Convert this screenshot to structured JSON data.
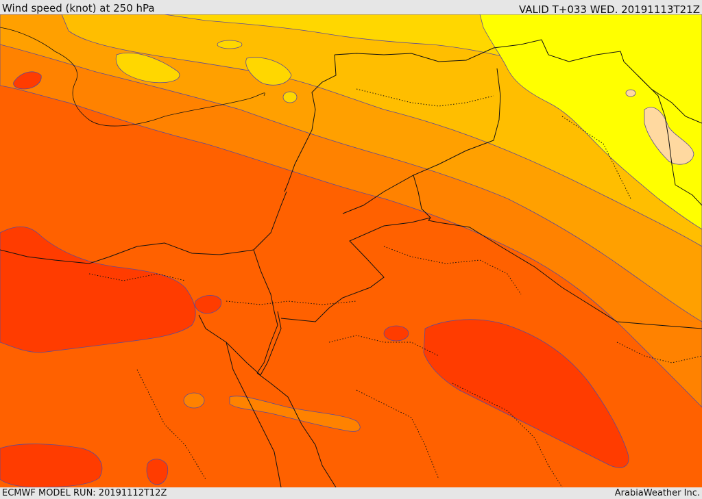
{
  "header": {
    "title_left": "Wind speed (knot) at 250 hPa",
    "title_right": "VALID T+033 WED. 20191113T21Z"
  },
  "footer": {
    "model_run": "ECMWF MODEL RUN: 20191112T12Z",
    "provider": "ArabiaWeather Inc."
  },
  "colors": {
    "level_1": "#ff3c00",
    "level_2": "#ff6100",
    "level_3": "#ff8200",
    "level_4": "#ffa000",
    "level_5": "#ffbe00",
    "level_6": "#ffd700",
    "level_7": "#ffff00",
    "level_8": "#ffd9a0",
    "contour_line": "#5a4a9a",
    "border_line": "#111111"
  }
}
